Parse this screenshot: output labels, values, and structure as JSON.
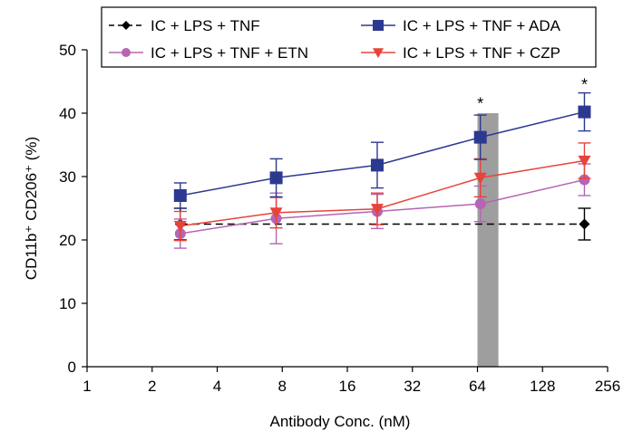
{
  "chart_data": {
    "type": "line",
    "x_scale": "log2",
    "xlim": [
      1,
      256
    ],
    "ylim": [
      0,
      50
    ],
    "x_ticks": [
      "1",
      "2",
      "4",
      "8",
      "16",
      "32",
      "64",
      "128",
      "256"
    ],
    "y_ticks": [
      "0",
      "10",
      "20",
      "30",
      "40",
      "50"
    ],
    "xlabel": "Antibody Conc. (nM)",
    "ylabel": "CD11b⁺ CD206⁺ (%)",
    "grid": false,
    "legend_position": "top",
    "shaded_band": {
      "x_from": 64,
      "x_to": 80,
      "color": "#9e9e9e"
    },
    "annotations": [
      {
        "text": "*",
        "x": 66,
        "y": 41.5
      },
      {
        "text": "*",
        "x": 200,
        "y": 44.5
      }
    ],
    "series": [
      {
        "name": "IC + LPS + TNF",
        "color": "#000000",
        "marker": "diamond",
        "line_style": "dashed",
        "points": [
          {
            "x": 2.7,
            "y": 22.5,
            "err": 2.5
          },
          {
            "x": 200,
            "y": 22.5,
            "err": 2.5
          }
        ]
      },
      {
        "name": "IC + LPS + TNF + ADA",
        "color": "#2b3990",
        "marker": "square",
        "line_style": "solid",
        "points": [
          {
            "x": 2.7,
            "y": 27.0,
            "err": 2.0
          },
          {
            "x": 7.5,
            "y": 29.8,
            "err": 3.0
          },
          {
            "x": 22,
            "y": 31.8,
            "err": 3.6
          },
          {
            "x": 66,
            "y": 36.2,
            "err": 3.5
          },
          {
            "x": 200,
            "y": 40.2,
            "err": 3.0
          }
        ]
      },
      {
        "name": "IC + LPS + TNF + ETN",
        "color": "#b565b2",
        "marker": "circle",
        "line_style": "solid",
        "points": [
          {
            "x": 2.7,
            "y": 21.0,
            "err": 2.3
          },
          {
            "x": 7.5,
            "y": 23.4,
            "err": 4.0
          },
          {
            "x": 22,
            "y": 24.5,
            "err": 2.7
          },
          {
            "x": 66,
            "y": 25.7,
            "err": 2.8
          },
          {
            "x": 200,
            "y": 29.5,
            "err": 2.5
          }
        ]
      },
      {
        "name": "IC + LPS + TNF + CZP",
        "color": "#e8433a",
        "marker": "triangle-down",
        "line_style": "solid",
        "points": [
          {
            "x": 2.7,
            "y": 22.2,
            "err": 2.3
          },
          {
            "x": 7.5,
            "y": 24.3,
            "err": 2.4
          },
          {
            "x": 22,
            "y": 24.9,
            "err": 2.5
          },
          {
            "x": 66,
            "y": 29.8,
            "err": 3.0
          },
          {
            "x": 200,
            "y": 32.5,
            "err": 2.8
          }
        ]
      }
    ]
  }
}
